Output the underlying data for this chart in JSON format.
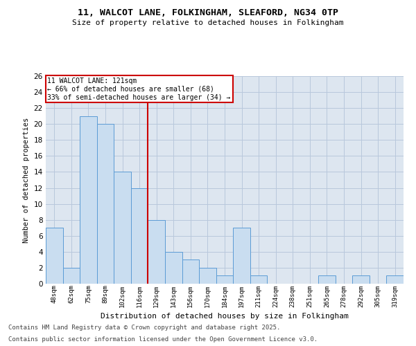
{
  "title_line1": "11, WALCOT LANE, FOLKINGHAM, SLEAFORD, NG34 0TP",
  "title_line2": "Size of property relative to detached houses in Folkingham",
  "xlabel": "Distribution of detached houses by size in Folkingham",
  "ylabel": "Number of detached properties",
  "categories": [
    "48sqm",
    "62sqm",
    "75sqm",
    "89sqm",
    "102sqm",
    "116sqm",
    "129sqm",
    "143sqm",
    "156sqm",
    "170sqm",
    "184sqm",
    "197sqm",
    "211sqm",
    "224sqm",
    "238sqm",
    "251sqm",
    "265sqm",
    "278sqm",
    "292sqm",
    "305sqm",
    "319sqm"
  ],
  "values": [
    7,
    2,
    21,
    20,
    14,
    12,
    8,
    4,
    3,
    2,
    1,
    7,
    1,
    0,
    0,
    0,
    1,
    0,
    1,
    0,
    1
  ],
  "bar_color": "#c9ddf0",
  "bar_edge_color": "#5b9bd5",
  "grid_color": "#b8c8dc",
  "bg_color": "#dde6f0",
  "ref_line_x": 5.5,
  "ref_line_color": "#cc0000",
  "annotation_text": "11 WALCOT LANE: 121sqm\n← 66% of detached houses are smaller (68)\n33% of semi-detached houses are larger (34) →",
  "annotation_box_color": "#cc0000",
  "ylim": [
    0,
    26
  ],
  "yticks": [
    0,
    2,
    4,
    6,
    8,
    10,
    12,
    14,
    16,
    18,
    20,
    22,
    24,
    26
  ],
  "footnote_line1": "Contains HM Land Registry data © Crown copyright and database right 2025.",
  "footnote_line2": "Contains public sector information licensed under the Open Government Licence v3.0."
}
